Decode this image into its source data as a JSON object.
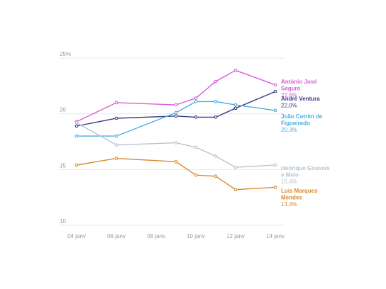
{
  "chart_data": {
    "type": "line",
    "title": "",
    "xlabel": "",
    "ylabel": "",
    "x_tick_labels": [
      "04 janv",
      "06 janv",
      "08 janv",
      "10 janv",
      "12 janv",
      "14 janv"
    ],
    "y_ticks": [
      {
        "value": 10,
        "label": "10"
      },
      {
        "value": 15,
        "label": "15"
      },
      {
        "value": 20,
        "label": "20"
      },
      {
        "value": 25,
        "label": "25%"
      }
    ],
    "ylim": [
      10,
      25
    ],
    "xlim": [
      4,
      14
    ],
    "grid": "horizontal",
    "legend": "end-of-line labels",
    "series": [
      {
        "name": "António José Seguro",
        "label_lines": [
          "António José",
          "Seguro"
        ],
        "value_label": "22,6%",
        "color": "#d65ed6",
        "points": [
          [
            4,
            19.3
          ],
          [
            6,
            21.0
          ],
          [
            9,
            20.8
          ],
          [
            10,
            21.4
          ],
          [
            11,
            22.9
          ],
          [
            12,
            23.9
          ],
          [
            14,
            22.6
          ]
        ]
      },
      {
        "name": "André Ventura",
        "label_lines": [
          "André Ventura"
        ],
        "value_label": "22,0%",
        "color": "#3a3a8c",
        "points": [
          [
            4,
            18.9
          ],
          [
            6,
            19.6
          ],
          [
            9,
            19.8
          ],
          [
            10,
            19.7
          ],
          [
            11,
            19.7
          ],
          [
            12,
            20.5
          ],
          [
            14,
            22.0
          ]
        ]
      },
      {
        "name": "João Cotrim de Figueiredo",
        "label_lines": [
          "João Cotrim de",
          "Figueiredo"
        ],
        "value_label": "20,3%",
        "color": "#48ade0",
        "points": [
          [
            4,
            18.0
          ],
          [
            6,
            18.0
          ],
          [
            9,
            20.1
          ],
          [
            10,
            21.1
          ],
          [
            11,
            21.1
          ],
          [
            12,
            20.8
          ],
          [
            14,
            20.3
          ]
        ]
      },
      {
        "name": "Henrique Gouveia e Melo",
        "label_lines": [
          "Henrique Gouveia",
          "e Melo"
        ],
        "value_label": "15,4%",
        "color": "#b7c3cf",
        "points": [
          [
            4,
            19.2
          ],
          [
            6,
            17.2
          ],
          [
            9,
            17.4
          ],
          [
            10,
            17.0
          ],
          [
            11,
            16.2
          ],
          [
            12,
            15.2
          ],
          [
            14,
            15.4
          ]
        ]
      },
      {
        "name": "Luís Marques Mendes",
        "label_lines": [
          "Luís Marques",
          "Mendes"
        ],
        "value_label": "13,4%",
        "color": "#d9892c",
        "points": [
          [
            4,
            15.4
          ],
          [
            6,
            16.0
          ],
          [
            9,
            15.7
          ],
          [
            10,
            14.5
          ],
          [
            11,
            14.4
          ],
          [
            12,
            13.2
          ],
          [
            14,
            13.4
          ]
        ]
      }
    ]
  }
}
